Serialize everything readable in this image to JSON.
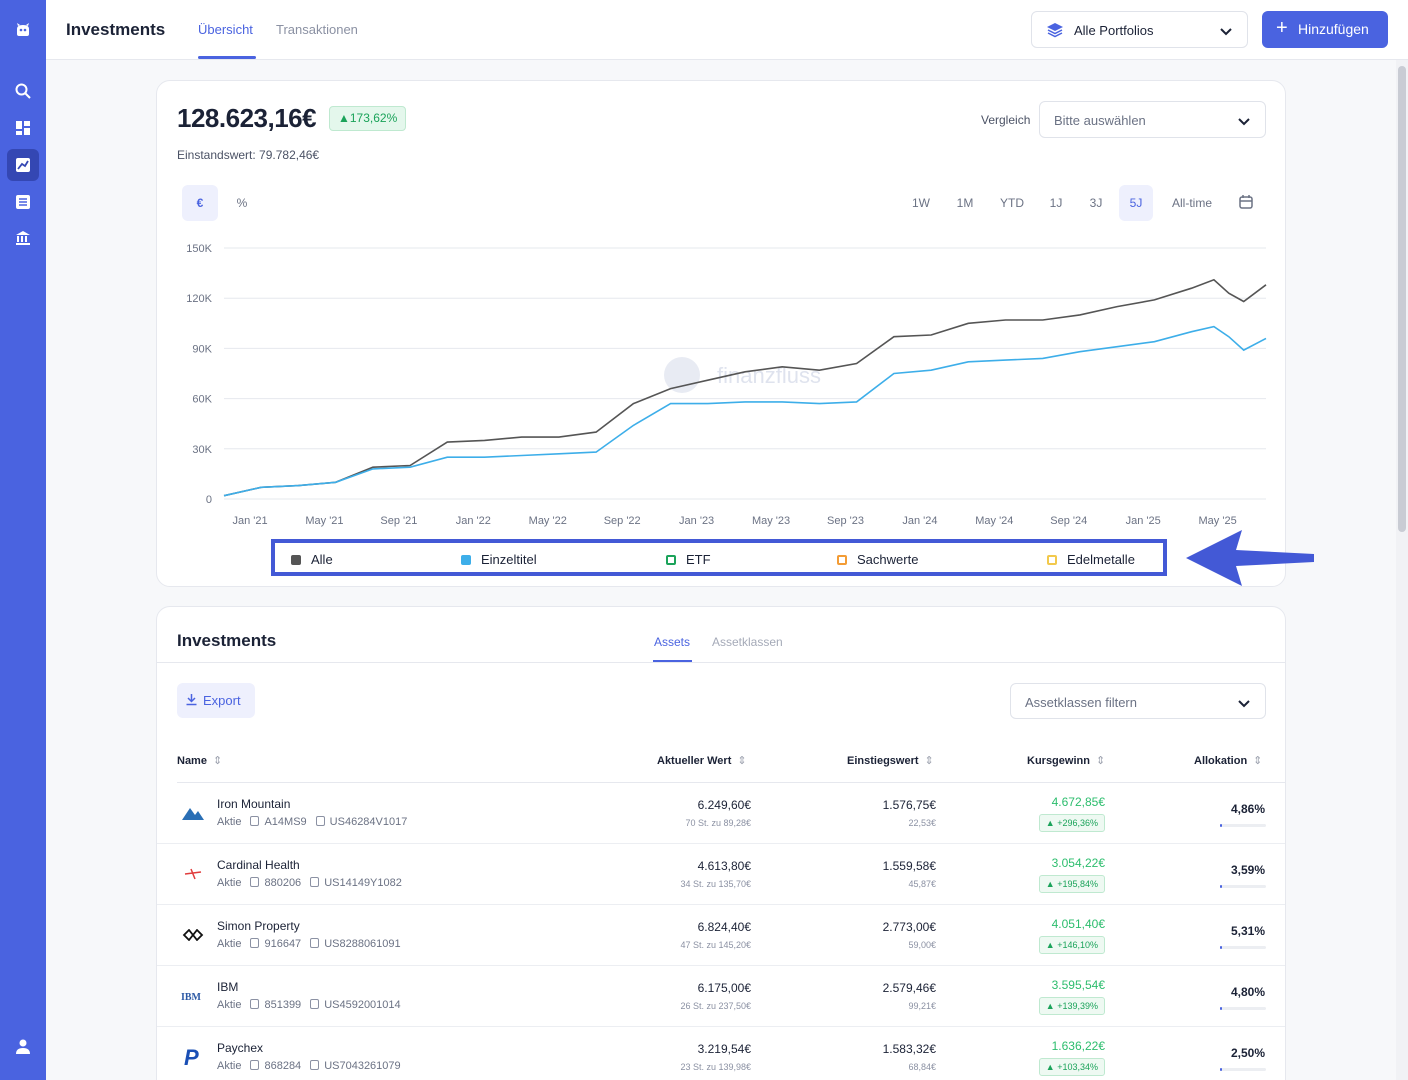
{
  "app": {
    "title": "Investments",
    "tabs": [
      "Übersicht",
      "Transaktionen"
    ],
    "portfolio_select": "Alle Portfolios",
    "add_button": "Hinzufügen"
  },
  "summary": {
    "total_value": "128.623,16€",
    "change_badge": "▲173,62%",
    "einstandswert": "Einstandswert: 79.782,46€",
    "vergleich_label": "Vergleich",
    "vergleich_placeholder": "Bitte auswählen"
  },
  "chart_controls": {
    "units": [
      "€",
      "%"
    ],
    "ranges": [
      "1W",
      "1M",
      "YTD",
      "1J",
      "3J",
      "5J",
      "All-time"
    ],
    "active_range": "5J",
    "active_unit": "€"
  },
  "watermark": "finanzfluss",
  "legend": [
    "Alle",
    "Einzeltitel",
    "ETF",
    "Sachwerte",
    "Edelmetalle"
  ],
  "colors": {
    "accent": "#4a63e0",
    "alle": "#555555",
    "einzeltitel": "#3daee9",
    "etf": "#1ba35a",
    "sachwerte": "#f39c35",
    "edelmetalle": "#f2c94c",
    "positive": "#2cbd6d"
  },
  "chart_data": {
    "type": "line",
    "x_ticks": [
      "Jan '21",
      "May '21",
      "Sep '21",
      "Jan '22",
      "May '22",
      "Sep '22",
      "Jan '23",
      "May '23",
      "Sep '23",
      "Jan '24",
      "May '24",
      "Sep '24",
      "Jan '25",
      "May '25"
    ],
    "y_ticks": [
      "150K",
      "120K",
      "90K",
      "60K",
      "30K",
      "0"
    ],
    "ylim": [
      0,
      150000
    ],
    "x": [
      0,
      0.5,
      1,
      1.5,
      2,
      2.5,
      3,
      3.5,
      4,
      4.5,
      5,
      5.5,
      6,
      6.5,
      7,
      7.5,
      8,
      8.5,
      9,
      9.5,
      10,
      10.5,
      11,
      11.5,
      12,
      12.5,
      13,
      13.3,
      13.5,
      13.7,
      14
    ],
    "series": [
      {
        "name": "Alle",
        "values": [
          2000,
          7000,
          8000,
          10000,
          19000,
          20000,
          34000,
          35000,
          37000,
          37000,
          40000,
          57000,
          66000,
          71000,
          76000,
          79000,
          77000,
          81000,
          97000,
          98000,
          105000,
          107000,
          107000,
          110000,
          115000,
          119000,
          126000,
          131000,
          123000,
          118000,
          128000
        ]
      },
      {
        "name": "Einzeltitel",
        "values": [
          2000,
          7000,
          8000,
          10000,
          18000,
          19000,
          25000,
          25000,
          26000,
          27000,
          28000,
          44000,
          57000,
          57000,
          58000,
          58000,
          57000,
          58000,
          75000,
          77000,
          82000,
          83000,
          84000,
          88000,
          91000,
          94000,
          100000,
          103000,
          97000,
          89000,
          96000
        ]
      }
    ]
  },
  "investments": {
    "title": "Investments",
    "tabs": [
      "Assets",
      "Assetklassen"
    ],
    "export_label": "Export",
    "filter_placeholder": "Assetklassen filtern",
    "columns": [
      "Name",
      "Aktueller Wert",
      "Einstiegswert",
      "Kursgewinn",
      "Allokation"
    ],
    "rows": [
      {
        "name": "Iron Mountain",
        "type": "Aktie",
        "wkn": "A14MS9",
        "isin": "US46284V1017",
        "value": "6.249,60€",
        "value_sub": "70 St. zu 89,28€",
        "entry": "1.576,75€",
        "entry_sub": "22,53€",
        "gain": "4.672,85€",
        "gain_pct": "▲ +296,36%",
        "alloc": "4,86%",
        "alloc_num": 4.86
      },
      {
        "name": "Cardinal Health",
        "type": "Aktie",
        "wkn": "880206",
        "isin": "US14149Y1082",
        "value": "4.613,80€",
        "value_sub": "34 St. zu 135,70€",
        "entry": "1.559,58€",
        "entry_sub": "45,87€",
        "gain": "3.054,22€",
        "gain_pct": "▲ +195,84%",
        "alloc": "3,59%",
        "alloc_num": 3.59
      },
      {
        "name": "Simon Property",
        "type": "Aktie",
        "wkn": "916647",
        "isin": "US8288061091",
        "value": "6.824,40€",
        "value_sub": "47 St. zu 145,20€",
        "entry": "2.773,00€",
        "entry_sub": "59,00€",
        "gain": "4.051,40€",
        "gain_pct": "▲ +146,10%",
        "alloc": "5,31%",
        "alloc_num": 5.31
      },
      {
        "name": "IBM",
        "type": "Aktie",
        "wkn": "851399",
        "isin": "US4592001014",
        "value": "6.175,00€",
        "value_sub": "26 St. zu 237,50€",
        "entry": "2.579,46€",
        "entry_sub": "99,21€",
        "gain": "3.595,54€",
        "gain_pct": "▲ +139,39%",
        "alloc": "4,80%",
        "alloc_num": 4.8
      },
      {
        "name": "Paychex",
        "type": "Aktie",
        "wkn": "868284",
        "isin": "US7043261079",
        "value": "3.219,54€",
        "value_sub": "23 St. zu 139,98€",
        "entry": "1.583,32€",
        "entry_sub": "68,84€",
        "gain": "1.636,22€",
        "gain_pct": "▲ +103,34%",
        "alloc": "2,50%",
        "alloc_num": 2.5
      }
    ]
  }
}
